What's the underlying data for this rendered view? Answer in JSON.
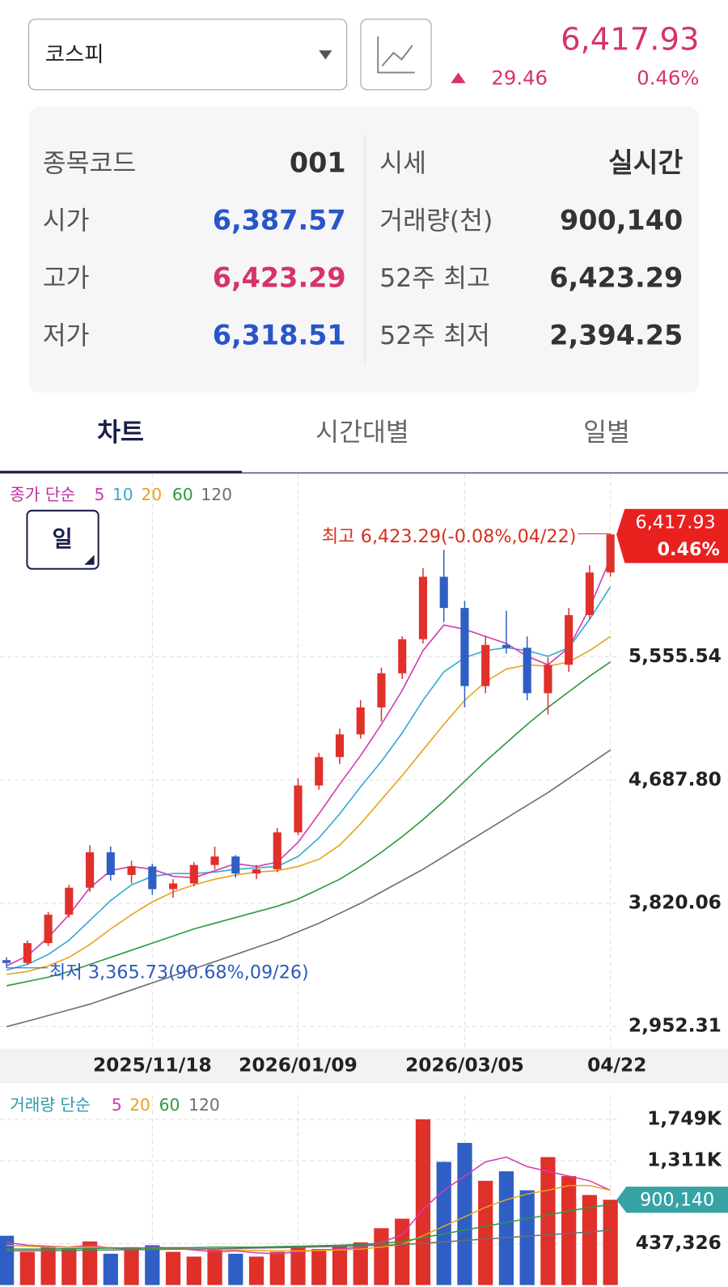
{
  "header": {
    "index_name": "코스피",
    "price": "6,417.93",
    "change": "29.46",
    "change_rate": "0.46%"
  },
  "info": {
    "rows": [
      [
        "종목코드",
        "001",
        "시세",
        "실시간"
      ],
      [
        "시가",
        "6,387.57",
        "거래량(천)",
        "900,140"
      ],
      [
        "고가",
        "6,423.29",
        "52주 최고",
        "6,423.29"
      ],
      [
        "저가",
        "6,318.51",
        "52주 최저",
        "2,394.25"
      ]
    ]
  },
  "tabs": [
    "차트",
    "시간대별",
    "일별"
  ],
  "period_button": "일",
  "chart_data": [
    {
      "type": "candlestick",
      "legend_title": "종가 단순",
      "categories": [
        null,
        null,
        null,
        null,
        null,
        null,
        null,
        "2025/11/18",
        null,
        null,
        null,
        null,
        null,
        null,
        "2026/01/09",
        null,
        null,
        null,
        null,
        null,
        null,
        null,
        "2026/03/05",
        null,
        null,
        null,
        null,
        null,
        null,
        "04/22"
      ],
      "open": [
        3420,
        3400,
        3540,
        3740,
        3930,
        4180,
        4020,
        4080,
        3920,
        3960,
        4090,
        4150,
        4030,
        4060,
        4320,
        4650,
        4850,
        5010,
        5200,
        5440,
        5680,
        6120,
        5900,
        5350,
        5640,
        5620,
        5300,
        5500,
        5850,
        6150
      ],
      "high": [
        3440,
        3560,
        3760,
        3950,
        4230,
        4220,
        4120,
        4100,
        3990,
        4110,
        4220,
        4160,
        4090,
        4350,
        4700,
        4880,
        5050,
        5250,
        5480,
        5700,
        6180,
        6310,
        5950,
        5700,
        5880,
        5700,
        5550,
        5900,
        6200,
        6423.29
      ],
      "low": [
        3365.73,
        3390,
        3520,
        3720,
        3900,
        3980,
        3960,
        3880,
        3860,
        3940,
        4060,
        4000,
        3990,
        4040,
        4300,
        4620,
        4800,
        4980,
        5100,
        5400,
        5650,
        5800,
        5200,
        5300,
        5580,
        5250,
        5150,
        5450,
        5820,
        6120
      ],
      "close": [
        3400,
        3540,
        3740,
        3930,
        4180,
        4020,
        4080,
        3920,
        3960,
        4090,
        4150,
        4030,
        4060,
        4320,
        4650,
        4850,
        5010,
        5200,
        5440,
        5680,
        6120,
        5900,
        5350,
        5640,
        5620,
        5300,
        5500,
        5850,
        6150,
        6417.93
      ],
      "up_color": "#e0302a",
      "down_color": "#2f5fc4",
      "series": [
        {
          "name": "5",
          "color": "#d23cb0",
          "values": [
            3380,
            3450,
            3580,
            3740,
            3930,
            4050,
            4080,
            4060,
            4010,
            4000,
            4050,
            4100,
            4080,
            4110,
            4250,
            4450,
            4660,
            4860,
            5080,
            5320,
            5600,
            5780,
            5750,
            5700,
            5650,
            5560,
            5500,
            5620,
            5900,
            6250
          ]
        },
        {
          "name": "10",
          "color": "#34a9cf",
          "values": [
            3350,
            3390,
            3460,
            3560,
            3700,
            3840,
            3950,
            4010,
            4030,
            4030,
            4040,
            4060,
            4070,
            4080,
            4150,
            4280,
            4450,
            4640,
            4820,
            5020,
            5250,
            5450,
            5550,
            5600,
            5620,
            5600,
            5560,
            5620,
            5820,
            6050
          ]
        },
        {
          "name": "20",
          "color": "#e6a41c",
          "values": [
            3320,
            3340,
            3380,
            3440,
            3530,
            3640,
            3740,
            3830,
            3900,
            3950,
            3990,
            4020,
            4040,
            4050,
            4080,
            4130,
            4230,
            4380,
            4550,
            4720,
            4900,
            5080,
            5250,
            5380,
            5470,
            5500,
            5490,
            5520,
            5600,
            5700
          ]
        },
        {
          "name": "60",
          "color": "#2d9a3c",
          "values": [
            3240,
            3270,
            3300,
            3340,
            3390,
            3440,
            3490,
            3540,
            3590,
            3640,
            3680,
            3720,
            3760,
            3800,
            3850,
            3920,
            3990,
            4080,
            4180,
            4290,
            4410,
            4540,
            4680,
            4820,
            4950,
            5080,
            5200,
            5310,
            5420,
            5520
          ]
        },
        {
          "name": "120",
          "color": "#6e6e6e",
          "values": [
            2952,
            2990,
            3030,
            3070,
            3110,
            3160,
            3210,
            3260,
            3310,
            3360,
            3410,
            3460,
            3510,
            3560,
            3620,
            3680,
            3750,
            3820,
            3900,
            3980,
            4060,
            4150,
            4240,
            4330,
            4420,
            4510,
            4600,
            4700,
            4800,
            4900
          ]
        }
      ],
      "ylim": [
        2796,
        6840
      ],
      "yticks": [
        {
          "value": 2952.31,
          "label": "2,952.31"
        },
        {
          "value": 3820.06,
          "label": "3,820.06"
        },
        {
          "value": 4687.8,
          "label": "4,687.80"
        },
        {
          "value": 5555.54,
          "label": "5,555.54"
        }
      ],
      "grid": true,
      "last_label": "6,417.93",
      "last_change": "0.46%",
      "annotations": [
        "최고 6,423.29(-0.08%,04/22)",
        "최저 3,365.73(90.68%,09/26)"
      ]
    },
    {
      "type": "bar",
      "legend_title": "거래량 단순",
      "values": [
        520000,
        350000,
        400000,
        380000,
        460000,
        330000,
        400000,
        420000,
        350000,
        300000,
        380000,
        330000,
        300000,
        350000,
        400000,
        380000,
        420000,
        450000,
        600000,
        700000,
        1749000,
        1300000,
        1500000,
        1100000,
        1200000,
        1000000,
        1350000,
        1150000,
        950000,
        900140
      ],
      "series": [
        {
          "name": "5",
          "color": "#d23cb0",
          "values": [
            450000,
            420000,
            410000,
            400000,
            420000,
            390000,
            380000,
            400000,
            390000,
            370000,
            350000,
            360000,
            340000,
            330000,
            350000,
            370000,
            380000,
            400000,
            450000,
            530000,
            800000,
            1000000,
            1150000,
            1300000,
            1350000,
            1250000,
            1200000,
            1150000,
            1100000,
            1000000
          ]
        },
        {
          "name": "20",
          "color": "#e6a41c",
          "values": [
            420000,
            410000,
            400000,
            400000,
            400000,
            395000,
            390000,
            390000,
            385000,
            380000,
            375000,
            370000,
            365000,
            360000,
            360000,
            365000,
            370000,
            380000,
            400000,
            430000,
            520000,
            620000,
            720000,
            820000,
            900000,
            960000,
            1000000,
            1050000,
            1050000,
            1000000
          ]
        },
        {
          "name": "60",
          "color": "#2d9a3c",
          "values": [
            380000,
            380000,
            380000,
            385000,
            385000,
            390000,
            390000,
            390000,
            395000,
            395000,
            400000,
            400000,
            400000,
            405000,
            410000,
            415000,
            420000,
            430000,
            440000,
            460000,
            500000,
            540000,
            580000,
            620000,
            660000,
            700000,
            740000,
            780000,
            820000,
            850000
          ]
        },
        {
          "name": "120",
          "color": "#6e6e6e",
          "values": [
            360000,
            362000,
            364000,
            366000,
            368000,
            370000,
            372000,
            375000,
            378000,
            380000,
            383000,
            386000,
            390000,
            394000,
            398000,
            403000,
            408000,
            414000,
            420000,
            428000,
            440000,
            455000,
            470000,
            485000,
            500000,
            515000,
            530000,
            545000,
            560000,
            580000
          ]
        }
      ],
      "ylim": [
        0,
        2000000
      ],
      "yticks": [
        {
          "value": 437326,
          "label": "437,326"
        },
        {
          "value": 1311000,
          "label": "1,311K"
        },
        {
          "value": 1749000,
          "label": "1,749K"
        }
      ],
      "grid": true,
      "last_label": "900,140"
    }
  ]
}
